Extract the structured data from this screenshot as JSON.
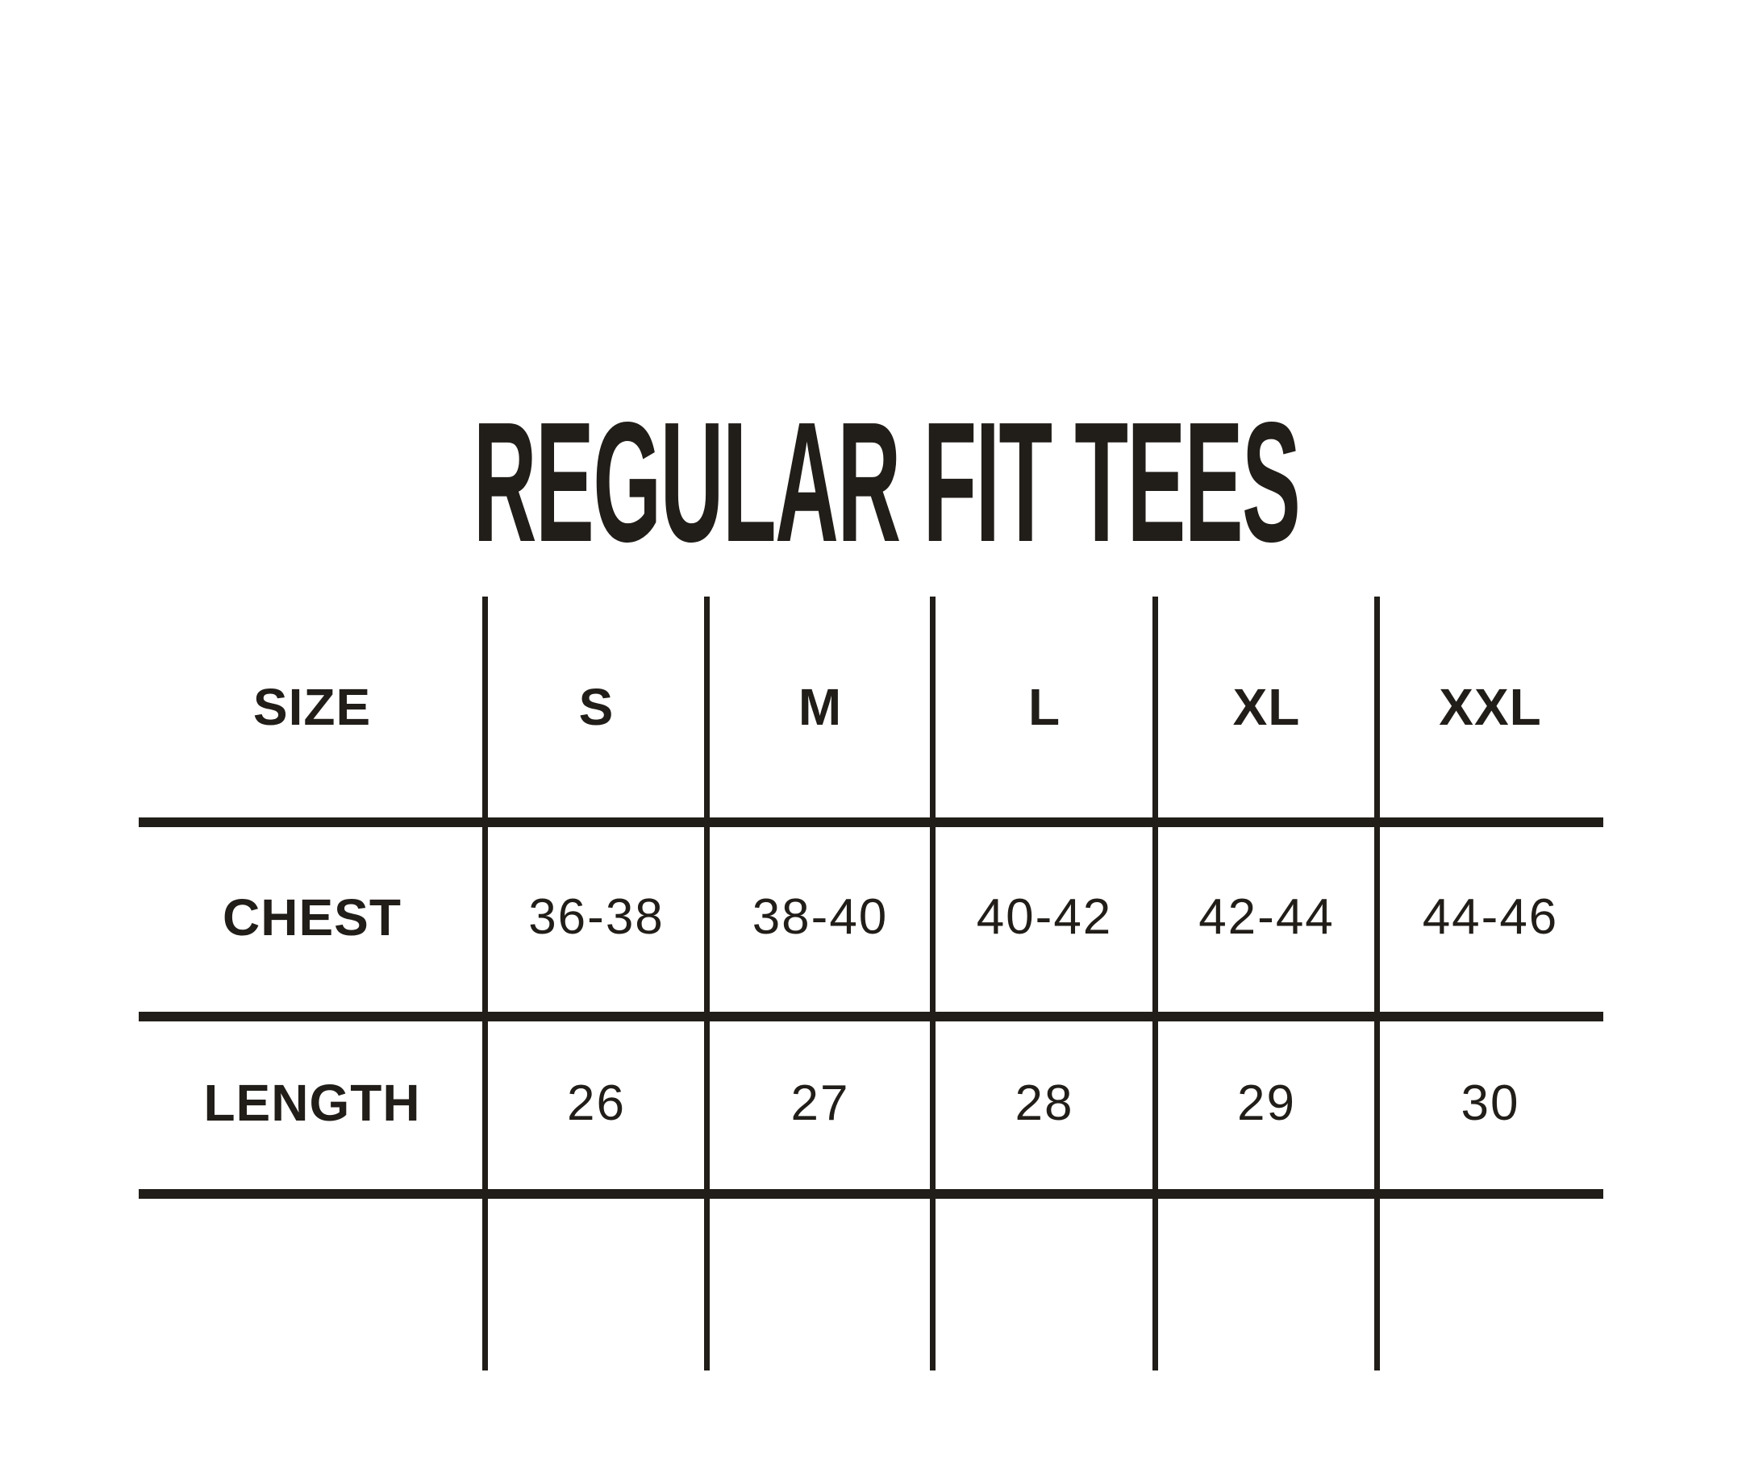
{
  "title": "REGULAR FIT TEES",
  "colors": {
    "ink": "#211d18",
    "background": "#ffffff"
  },
  "chart_data": {
    "type": "table",
    "title": "REGULAR FIT TEES",
    "columns": [
      "SIZE",
      "S",
      "M",
      "L",
      "XL",
      "XXL"
    ],
    "rows": [
      {
        "label": "CHEST",
        "values": [
          "36-38",
          "38-40",
          "40-42",
          "42-44",
          "44-46"
        ]
      },
      {
        "label": "LENGTH",
        "values": [
          "26",
          "27",
          "28",
          "29",
          "30"
        ]
      }
    ],
    "layout": {
      "grid": "three horizontal rules, five internal vertical dividers extending beyond rules, no outer border",
      "legend": "none",
      "empty_bottom_row": true
    }
  }
}
